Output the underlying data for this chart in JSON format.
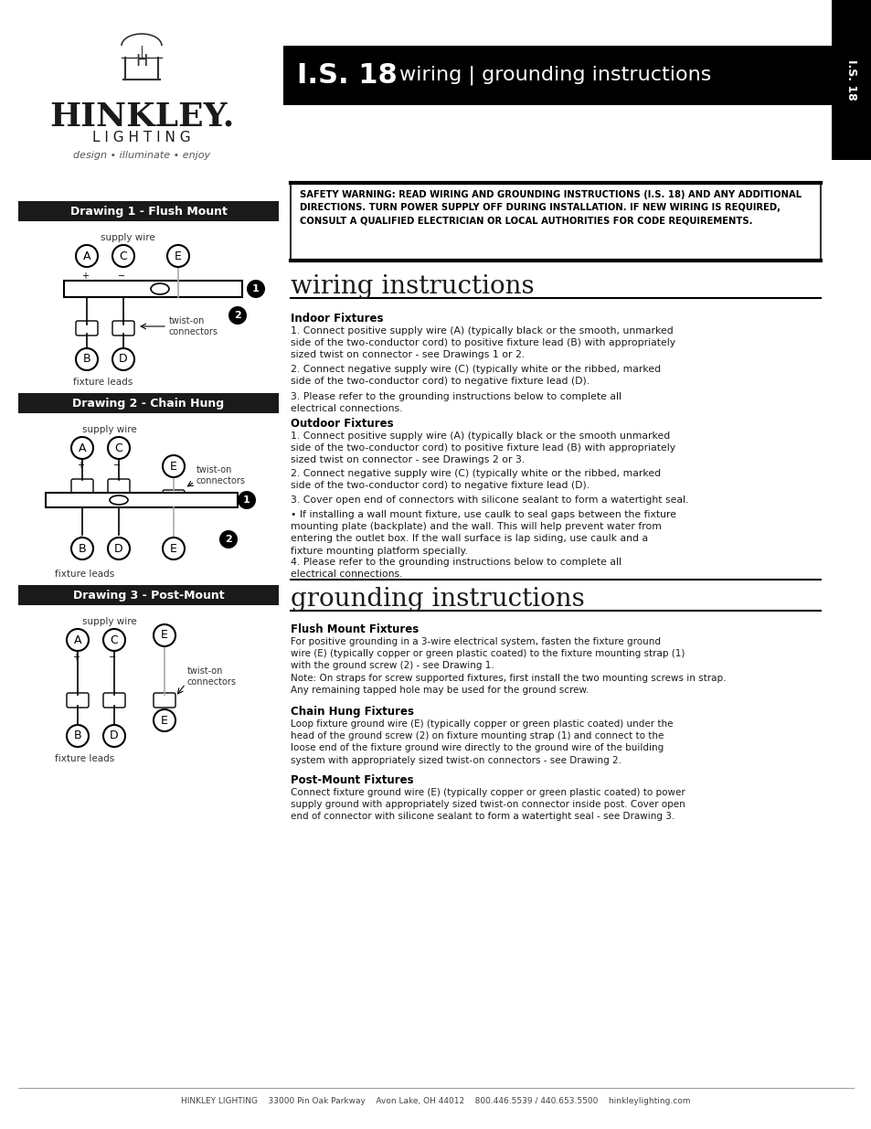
{
  "title_bar_text": "I.S. 18 wiring | grounding instructions",
  "title_bar_bg": "#000000",
  "title_bar_fg": "#ffffff",
  "side_tab_text": "I.S. 18",
  "side_tab_bg": "#000000",
  "side_tab_fg": "#ffffff",
  "logo_company": "HINKLEY.",
  "logo_sub": "L I G H T I N G",
  "logo_tagline": "design • illuminate • enjoy",
  "drawing1_title": "Drawing 1 - Flush Mount",
  "drawing2_title": "Drawing 2 - Chain Hung",
  "drawing3_title": "Drawing 3 - Post-Mount",
  "drawing_title_bg": "#1a1a1a",
  "drawing_title_fg": "#ffffff",
  "safety_warning": "SAFETY WARNING: READ WIRING AND GROUNDING INSTRUCTIONS (I.S. 18)\nAND ANY ADDITIONAL DIRECTIONS. TURN POWER SUPPLY OFF DURING\nINSTALLATION. IF NEW WIRING IS REQUIRED, CONSULT A QUALIFIED\nELECTRICIAN OR LOCAL AUTHORITIES FOR CODE REQUIREMENTS.",
  "wiring_title": "wiring instructions",
  "grounding_title": "grounding instructions",
  "indoor_header": "Indoor Fixtures",
  "indoor_p1": "1. Connect positive supply wire (A) (typically black or the smooth, unmarked\nside of the two-conductor cord) to positive fixture lead (B) with appropriately\nsized twist on connector - see Drawings 1 or 2.",
  "indoor_p2": "2. Connect negative supply wire (C) (typically white or the ribbed, marked\nside of the two-conductor cord) to negative fixture lead (D).",
  "indoor_p3": "3. Please refer to the grounding instructions below to complete all\nelectrical connections.",
  "outdoor_header": "Outdoor Fixtures",
  "outdoor_p1": "1. Connect positive supply wire (A) (typically black or the smooth unmarked\nside of the two-conductor cord) to positive fixture lead (B) with appropriately\nsized twist on connector - see Drawings 2 or 3.",
  "outdoor_p2": "2. Connect negative supply wire (C) (typically white or the ribbed, marked\nside of the two-conductor cord) to negative fixture lead (D).",
  "outdoor_p3": "3. Cover open end of connectors with silicone sealant to form a watertight seal.",
  "outdoor_p4": "• If installing a wall mount fixture, use caulk to seal gaps between the fixture\nmounting plate (backplate) and the wall. This will help prevent water from\nentering the outlet box. If the wall surface is lap siding, use caulk and a\nfixture mounting platform specially.",
  "outdoor_p5": "4. Please refer to the grounding instructions below to complete all\nelectrical connections.",
  "flush_header": "Flush Mount Fixtures",
  "flush_text": "For positive grounding in a 3-wire electrical system, fasten the fixture ground\nwire (E) (typically copper or green plastic coated) to the fixture mounting strap (1)\nwith the ground screw (2) - see Drawing 1.\nNote: On straps for screw supported fixtures, first install the two mounting screws in strap.\nAny remaining tapped hole may be used for the ground screw.",
  "chain_header": "Chain Hung Fixtures",
  "chain_text": "Loop fixture ground wire (E) (typically copper or green plastic coated) under the\nhead of the ground screw (2) on fixture mounting strap (1) and connect to the\nloose end of the fixture ground wire directly to the ground wire of the building\nsystem with appropriately sized twist-on connectors - see Drawing 2.",
  "post_header": "Post-Mount Fixtures",
  "post_text": "Connect fixture ground wire (E) (typically copper or green plastic coated) to power\nsupply ground with appropriately sized twist-on connector inside post. Cover open\nend of connector with silicone sealant to form a watertight seal - see Drawing 3.",
  "footer_text": "HINKLEY LIGHTING    33000 Pin Oak Parkway    Avon Lake, OH 44012    800.446.5539 / 440.653.5500    hinkleylighting.com",
  "page_bg": "#ffffff",
  "text_color": "#1a1a1a",
  "divider_color": "#000000"
}
